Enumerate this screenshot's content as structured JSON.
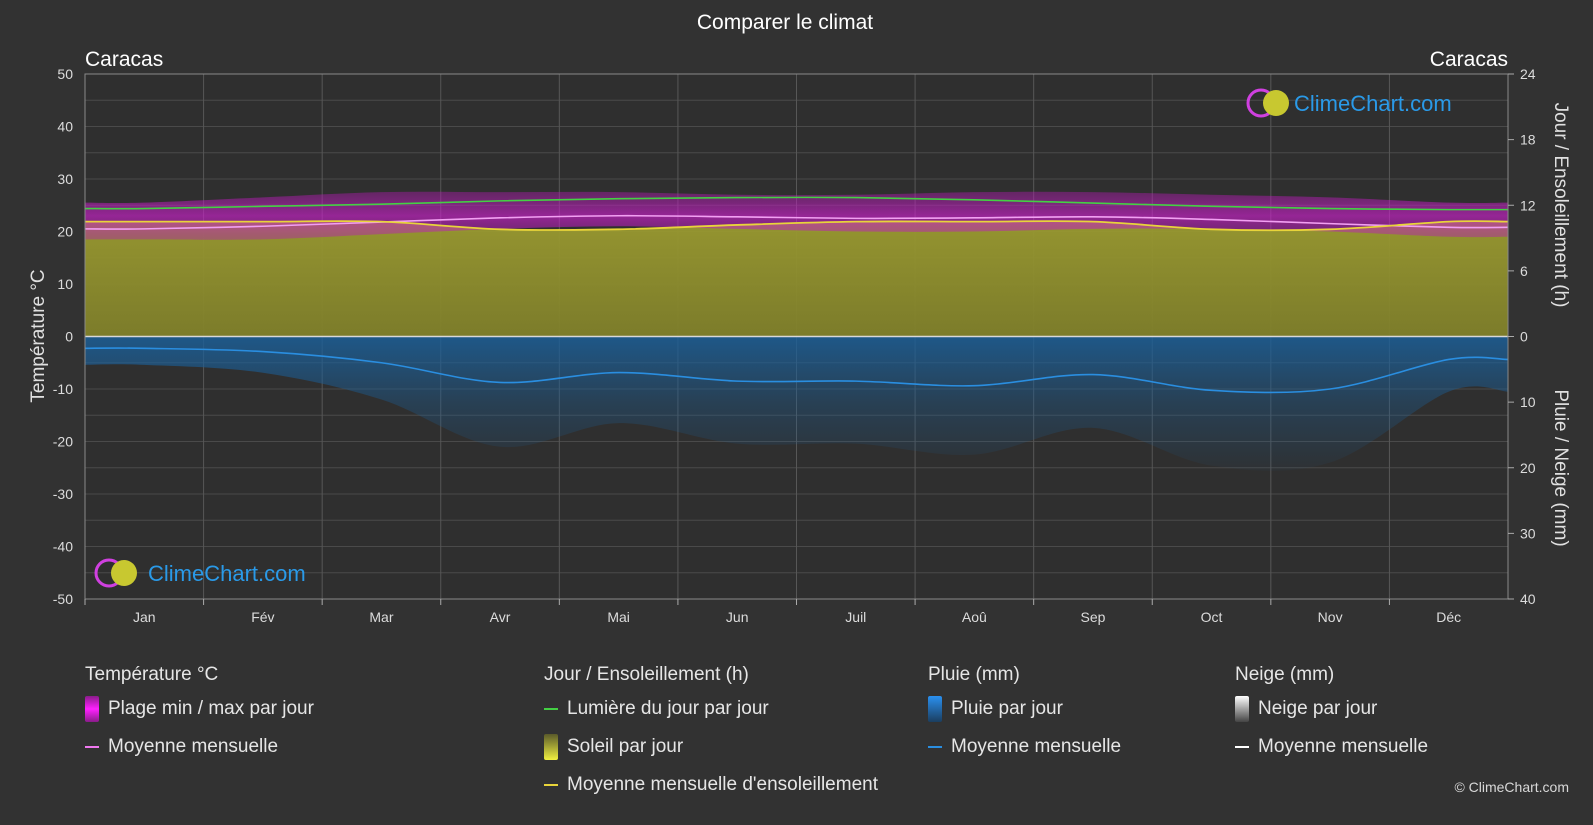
{
  "title": "Comparer le climat",
  "copyright": "© ClimeChart.com",
  "logo_text": "ClimeChart.com",
  "chart_data": {
    "type": "area",
    "title": "Comparer le climat",
    "location_left": "Caracas",
    "location_right": "Caracas",
    "categories": [
      "Jan",
      "Fév",
      "Mar",
      "Avr",
      "Mai",
      "Jun",
      "Juil",
      "Aoû",
      "Sep",
      "Oct",
      "Nov",
      "Déc"
    ],
    "y_left": {
      "label": "Température °C",
      "range": [
        -50,
        50
      ],
      "ticks": [
        50,
        40,
        30,
        20,
        10,
        0,
        -10,
        -20,
        -30,
        -40,
        -50
      ]
    },
    "y_right_top": {
      "label": "Jour / Ensoleillement (h)",
      "range": [
        0,
        24
      ],
      "ticks": [
        24,
        18,
        12,
        6,
        0
      ]
    },
    "y_right_bottom": {
      "label": "Pluie / Neige (mm)",
      "range": [
        0,
        40
      ],
      "ticks": [
        10,
        20,
        30,
        40
      ]
    },
    "grid": true,
    "series": [
      {
        "name": "Lumière du jour par jour",
        "unit": "h",
        "values": [
          11.7,
          11.9,
          12.1,
          12.4,
          12.6,
          12.7,
          12.7,
          12.5,
          12.2,
          11.9,
          11.7,
          11.6
        ]
      },
      {
        "name": "Moyenne mensuelle d'ensoleillement",
        "unit": "h",
        "values": [
          10.5,
          10.5,
          10.5,
          9.8,
          9.8,
          10.2,
          10.5,
          10.5,
          10.5,
          9.8,
          9.8,
          10.5
        ]
      },
      {
        "name": "Moyenne mensuelle (Température)",
        "unit": "°C",
        "values": [
          20.5,
          21.0,
          21.8,
          22.6,
          23.0,
          22.8,
          22.5,
          22.6,
          22.8,
          22.3,
          21.5,
          20.8
        ]
      },
      {
        "name": "Plage min / max par jour (max)",
        "unit": "°C",
        "values": [
          25.5,
          26.5,
          27.5,
          27.5,
          27.5,
          27.0,
          27.0,
          27.5,
          27.5,
          27.0,
          26.5,
          25.5
        ]
      },
      {
        "name": "Plage min / max par jour (min)",
        "unit": "°C",
        "values": [
          18.5,
          18.5,
          19.5,
          20.5,
          21.0,
          20.5,
          20.0,
          20.0,
          20.5,
          20.5,
          20.0,
          19.0
        ]
      },
      {
        "name": "Moyenne mensuelle (Pluie)",
        "unit": "mm",
        "values": [
          1.8,
          2.3,
          4.0,
          7.0,
          5.5,
          6.8,
          6.8,
          7.5,
          5.8,
          8.2,
          8.0,
          3.5
        ]
      }
    ]
  },
  "legend": {
    "temperature": {
      "title": "Température °C",
      "range_label": "Plage min / max par jour",
      "mean_label": "Moyenne mensuelle",
      "range_color": "#d61fd6",
      "mean_color": "#f078f0"
    },
    "sun": {
      "title": "Jour / Ensoleillement (h)",
      "daylight_label": "Lumière du jour par jour",
      "sun_label": "Soleil par jour",
      "sun_mean_label": "Moyenne mensuelle d'ensoleillement",
      "daylight_color": "#44d044",
      "sun_color": "#c9c935",
      "sun_mean_color": "#e8d43a"
    },
    "rain": {
      "title": "Pluie (mm)",
      "rain_label": "Pluie par jour",
      "mean_label": "Moyenne mensuelle",
      "rain_color": "#1f78c8",
      "mean_color": "#2a8ee0"
    },
    "snow": {
      "title": "Neige (mm)",
      "snow_label": "Neige par jour",
      "mean_label": "Moyenne mensuelle",
      "snow_color": "#bdbdbd",
      "mean_color": "#ffffff"
    }
  }
}
